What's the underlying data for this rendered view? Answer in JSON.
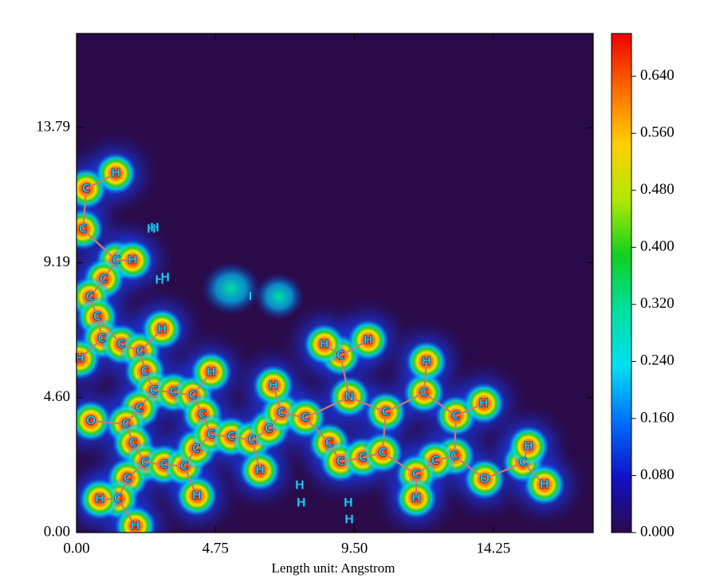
{
  "chart_data": {
    "type": "heatmap",
    "x_label": "Length unit: Angstrom",
    "xlim": [
      0,
      17.66
    ],
    "ylim": [
      0,
      17.0
    ],
    "xticks": [
      {
        "value": 0,
        "label": "0.00"
      },
      {
        "value": 4.75,
        "label": "4.75"
      },
      {
        "value": 9.5,
        "label": "9.50"
      },
      {
        "value": 14.25,
        "label": "14.25"
      }
    ],
    "yticks": [
      {
        "value": 0,
        "label": "0.00"
      },
      {
        "value": 4.6,
        "label": "4.60"
      },
      {
        "value": 9.19,
        "label": "9.19"
      },
      {
        "value": 13.79,
        "label": "13.79"
      }
    ],
    "colorbar": {
      "zlim": [
        0,
        0.7
      ],
      "ticks": [
        {
          "value": 0,
          "label": "0.000"
        },
        {
          "value": 0.08,
          "label": "0.080"
        },
        {
          "value": 0.16,
          "label": "0.160"
        },
        {
          "value": 0.24,
          "label": "0.240"
        },
        {
          "value": 0.32,
          "label": "0.320"
        },
        {
          "value": 0.4,
          "label": "0.400"
        },
        {
          "value": 0.48,
          "label": "0.480"
        },
        {
          "value": 0.56,
          "label": "0.560"
        },
        {
          "value": 0.64,
          "label": "0.640"
        }
      ],
      "colors": [
        "#2a0a48",
        "#1010c8",
        "#0070ff",
        "#00e0f0",
        "#00e0a0",
        "#10d020",
        "#b0e800",
        "#ffd000",
        "#ff6a00",
        "#ee0000"
      ]
    },
    "atoms": [
      {
        "label": "C",
        "x": 0.33,
        "y": 11.71
      },
      {
        "label": "H",
        "x": 1.34,
        "y": 12.23
      },
      {
        "label": "C",
        "x": 0.22,
        "y": 10.33
      },
      {
        "label": "C",
        "x": 1.36,
        "y": 9.27
      },
      {
        "label": "H",
        "x": 1.91,
        "y": 9.27
      },
      {
        "label": "C",
        "x": 0.93,
        "y": 8.64
      },
      {
        "label": "C",
        "x": 0.46,
        "y": 8.02
      },
      {
        "label": "C",
        "x": 0.71,
        "y": 7.34
      },
      {
        "label": "C",
        "x": 0.87,
        "y": 6.6
      },
      {
        "label": "H",
        "x": 0.11,
        "y": 5.92
      },
      {
        "label": "C",
        "x": 1.53,
        "y": 6.41
      },
      {
        "label": "C",
        "x": 2.18,
        "y": 6.17
      },
      {
        "label": "H",
        "x": 2.92,
        "y": 6.93
      },
      {
        "label": "C",
        "x": 2.34,
        "y": 5.49
      },
      {
        "label": "C",
        "x": 2.64,
        "y": 4.84
      },
      {
        "label": "C",
        "x": 3.32,
        "y": 4.78
      },
      {
        "label": "C",
        "x": 3.98,
        "y": 4.67
      },
      {
        "label": "H",
        "x": 4.6,
        "y": 5.46
      },
      {
        "label": "C",
        "x": 4.3,
        "y": 4.02
      },
      {
        "label": "C",
        "x": 2.15,
        "y": 4.24
      },
      {
        "label": "O",
        "x": 0.49,
        "y": 3.8
      },
      {
        "label": "C",
        "x": 1.69,
        "y": 3.7
      },
      {
        "label": "C",
        "x": 1.93,
        "y": 3.04
      },
      {
        "label": "C",
        "x": 2.34,
        "y": 2.39
      },
      {
        "label": "C",
        "x": 2.99,
        "y": 2.31
      },
      {
        "label": "C",
        "x": 3.68,
        "y": 2.26
      },
      {
        "label": "C",
        "x": 4.09,
        "y": 2.85
      },
      {
        "label": "C",
        "x": 4.6,
        "y": 3.34
      },
      {
        "label": "C",
        "x": 5.29,
        "y": 3.26
      },
      {
        "label": "C",
        "x": 6.0,
        "y": 3.15
      },
      {
        "label": "H",
        "x": 6.27,
        "y": 2.12
      },
      {
        "label": "H",
        "x": 4.11,
        "y": 1.25
      },
      {
        "label": "C",
        "x": 1.74,
        "y": 1.85
      },
      {
        "label": "C",
        "x": 1.42,
        "y": 1.14
      },
      {
        "label": "H",
        "x": 0.79,
        "y": 1.14
      },
      {
        "label": "H",
        "x": 2.01,
        "y": 0.22
      },
      {
        "label": "C",
        "x": 6.57,
        "y": 3.53
      },
      {
        "label": "C",
        "x": 7.0,
        "y": 4.08
      },
      {
        "label": "H",
        "x": 6.73,
        "y": 5.0
      },
      {
        "label": "C",
        "x": 7.82,
        "y": 3.91
      },
      {
        "label": "C",
        "x": 8.64,
        "y": 3.04
      },
      {
        "label": "C",
        "x": 9.02,
        "y": 2.42
      },
      {
        "label": "C",
        "x": 9.78,
        "y": 2.55
      },
      {
        "label": "C",
        "x": 10.46,
        "y": 2.72
      },
      {
        "label": "C",
        "x": 10.57,
        "y": 4.1
      },
      {
        "label": "N",
        "x": 9.32,
        "y": 4.62
      },
      {
        "label": "C",
        "x": 9.02,
        "y": 6.03
      },
      {
        "label": "H",
        "x": 8.47,
        "y": 6.41
      },
      {
        "label": "H",
        "x": 9.97,
        "y": 6.55
      },
      {
        "label": "C",
        "x": 11.88,
        "y": 4.76
      },
      {
        "label": "H",
        "x": 11.96,
        "y": 5.82
      },
      {
        "label": "C",
        "x": 12.97,
        "y": 3.97
      },
      {
        "label": "H",
        "x": 13.92,
        "y": 4.4
      },
      {
        "label": "C",
        "x": 12.92,
        "y": 2.61
      },
      {
        "label": "C",
        "x": 12.26,
        "y": 2.45
      },
      {
        "label": "C",
        "x": 11.61,
        "y": 1.98
      },
      {
        "label": "H",
        "x": 11.61,
        "y": 1.17
      },
      {
        "label": "O",
        "x": 13.95,
        "y": 1.82
      },
      {
        "label": "C",
        "x": 15.26,
        "y": 2.39
      },
      {
        "label": "H",
        "x": 15.45,
        "y": 2.93
      },
      {
        "label": "H",
        "x": 15.99,
        "y": 1.63
      },
      {
        "label": "H",
        "x": 2.56,
        "y": 10.33
      },
      {
        "label": "H",
        "x": 2.67,
        "y": 10.38
      },
      {
        "label": "H",
        "x": 2.84,
        "y": 8.6
      },
      {
        "label": "H",
        "x": 3.03,
        "y": 8.68
      },
      {
        "label": "I",
        "x": 5.94,
        "y": 8.04
      },
      {
        "label": "H",
        "x": 7.63,
        "y": 1.6
      },
      {
        "label": "H",
        "x": 7.68,
        "y": 1.01
      },
      {
        "label": "H",
        "x": 9.29,
        "y": 1.01
      },
      {
        "label": "H",
        "x": 9.32,
        "y": 0.43
      }
    ],
    "bonds": [
      [
        0,
        1
      ],
      [
        0,
        2
      ],
      [
        2,
        3
      ],
      [
        3,
        4
      ],
      [
        3,
        5
      ],
      [
        5,
        6
      ],
      [
        6,
        7
      ],
      [
        7,
        8
      ],
      [
        8,
        9
      ],
      [
        7,
        10
      ],
      [
        10,
        11
      ],
      [
        11,
        12
      ],
      [
        11,
        13
      ],
      [
        13,
        14
      ],
      [
        14,
        15
      ],
      [
        15,
        16
      ],
      [
        16,
        17
      ],
      [
        16,
        18
      ],
      [
        14,
        19
      ],
      [
        19,
        21
      ],
      [
        20,
        21
      ],
      [
        21,
        22
      ],
      [
        22,
        23
      ],
      [
        23,
        24
      ],
      [
        24,
        25
      ],
      [
        25,
        26
      ],
      [
        26,
        27
      ],
      [
        27,
        18
      ],
      [
        27,
        28
      ],
      [
        28,
        29
      ],
      [
        29,
        30
      ],
      [
        25,
        31
      ],
      [
        23,
        32
      ],
      [
        32,
        33
      ],
      [
        33,
        34
      ],
      [
        33,
        35
      ],
      [
        29,
        36
      ],
      [
        36,
        37
      ],
      [
        37,
        38
      ],
      [
        37,
        39
      ],
      [
        39,
        40
      ],
      [
        40,
        41
      ],
      [
        41,
        42
      ],
      [
        42,
        43
      ],
      [
        43,
        44
      ],
      [
        44,
        45
      ],
      [
        45,
        39
      ],
      [
        45,
        46
      ],
      [
        46,
        47
      ],
      [
        46,
        48
      ],
      [
        44,
        49
      ],
      [
        49,
        50
      ],
      [
        49,
        51
      ],
      [
        51,
        52
      ],
      [
        51,
        53
      ],
      [
        53,
        54
      ],
      [
        54,
        55
      ],
      [
        55,
        56
      ],
      [
        55,
        43
      ],
      [
        53,
        57
      ],
      [
        57,
        58
      ],
      [
        58,
        59
      ],
      [
        58,
        60
      ]
    ]
  }
}
